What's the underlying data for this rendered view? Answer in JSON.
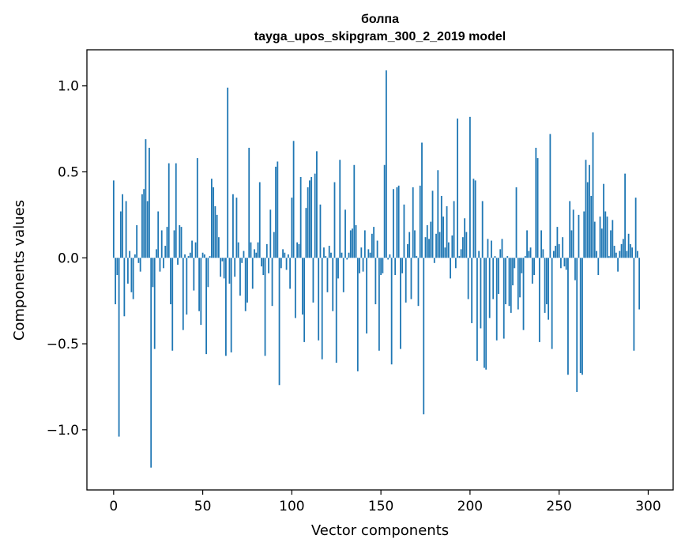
{
  "chart_data": {
    "type": "bar",
    "title": "болпа",
    "subtitle": "tayga_upos_skipgram_300_2_2019 model",
    "xlabel": "Vector components",
    "ylabel": "Components values",
    "xlim": [
      -15,
      314
    ],
    "ylim": [
      -1.35,
      1.21
    ],
    "xticks": [
      0,
      50,
      100,
      150,
      200,
      250,
      300
    ],
    "xtick_labels": [
      "0",
      "50",
      "100",
      "150",
      "200",
      "250",
      "300"
    ],
    "yticks": [
      -1.0,
      -0.5,
      0.0,
      0.5,
      1.0
    ],
    "ytick_labels": [
      "−1.0",
      "−0.5",
      "0.0",
      "0.5",
      "1.0"
    ],
    "bar_color": "#1f77b4",
    "grid": false,
    "series": [
      {
        "name": "болпа",
        "values": [
          0.45,
          -0.27,
          -0.1,
          -1.04,
          0.27,
          0.37,
          -0.34,
          0.33,
          -0.15,
          0.04,
          -0.2,
          -0.24,
          0.02,
          0.19,
          -0.03,
          -0.08,
          0.37,
          0.4,
          0.69,
          0.33,
          0.64,
          -1.22,
          -0.17,
          -0.53,
          0.05,
          0.27,
          -0.08,
          0.16,
          -0.06,
          0.07,
          0.18,
          0.55,
          -0.27,
          -0.54,
          0.16,
          0.55,
          -0.04,
          0.19,
          0.18,
          -0.42,
          0.02,
          -0.33,
          0.01,
          0.03,
          0.1,
          -0.19,
          0.09,
          0.58,
          -0.31,
          -0.39,
          0.03,
          0.02,
          -0.56,
          -0.17,
          0.01,
          0.46,
          0.41,
          0.3,
          0.25,
          0.12,
          -0.11,
          -0.02,
          -0.12,
          -0.57,
          0.99,
          -0.15,
          -0.55,
          0.37,
          -0.11,
          0.35,
          0.09,
          -0.22,
          -0.03,
          0.04,
          -0.31,
          -0.26,
          0.64,
          0.09,
          -0.18,
          0.05,
          0.03,
          0.09,
          0.44,
          -0.05,
          -0.1,
          -0.57,
          0.08,
          -0.09,
          0.28,
          -0.28,
          0.15,
          0.53,
          0.56,
          -0.74,
          -0.06,
          0.05,
          0.03,
          -0.07,
          0.02,
          -0.18,
          0.35,
          0.68,
          -0.35,
          0.09,
          0.08,
          0.47,
          -0.33,
          -0.49,
          0.29,
          0.41,
          0.45,
          0.47,
          -0.26,
          0.49,
          0.62,
          -0.48,
          0.31,
          -0.59,
          0.06,
          0.01,
          -0.2,
          0.07,
          0.03,
          -0.31,
          0.44,
          -0.61,
          -0.12,
          0.57,
          0.03,
          -0.2,
          0.28,
          -0.01,
          0.03,
          0.16,
          0.17,
          0.54,
          0.19,
          -0.66,
          -0.09,
          0.06,
          -0.08,
          0.16,
          -0.44,
          0.05,
          0.03,
          0.14,
          0.18,
          -0.27,
          0.1,
          -0.54,
          -0.1,
          -0.09,
          0.54,
          1.09,
          -0.01,
          0.02,
          -0.62,
          0.4,
          -0.1,
          0.41,
          0.42,
          -0.53,
          -0.09,
          0.31,
          -0.26,
          0.08,
          0.15,
          -0.24,
          0.41,
          0.16,
          0.01,
          -0.28,
          0.42,
          0.67,
          -0.91,
          0.12,
          0.19,
          0.11,
          0.21,
          0.39,
          -0.03,
          0.14,
          0.51,
          0.15,
          0.36,
          0.24,
          0.06,
          0.3,
          0.09,
          -0.12,
          0.13,
          0.33,
          -0.06,
          0.81,
          0.01,
          0.05,
          0.12,
          0.23,
          0.15,
          -0.24,
          0.82,
          -0.38,
          0.46,
          0.45,
          -0.6,
          0.04,
          -0.41,
          0.33,
          -0.64,
          -0.65,
          0.11,
          -0.35,
          0.1,
          -0.24,
          0.01,
          -0.48,
          -0.21,
          0.05,
          0.11,
          -0.47,
          -0.27,
          0.01,
          -0.28,
          -0.32,
          -0.16,
          -0.06,
          0.41,
          -0.3,
          -0.23,
          -0.09,
          -0.42,
          0.01,
          0.16,
          0.04,
          0.06,
          -0.15,
          -0.1,
          0.64,
          0.58,
          -0.49,
          0.16,
          0.05,
          -0.32,
          -0.27,
          -0.36,
          0.72,
          -0.53,
          0.04,
          0.07,
          0.18,
          0.08,
          -0.06,
          0.12,
          -0.05,
          -0.07,
          -0.68,
          0.33,
          0.16,
          0.28,
          -0.13,
          -0.78,
          0.25,
          -0.67,
          -0.68,
          0.27,
          0.57,
          0.44,
          0.54,
          0.36,
          0.73,
          0.21,
          0.04,
          -0.1,
          0.24,
          0.17,
          0.43,
          0.27,
          0.24,
          0.01,
          0.16,
          0.22,
          0.07,
          0.03,
          -0.08,
          0.04,
          0.08,
          0.11,
          0.49,
          0.04,
          0.14,
          0.08,
          0.06,
          -0.54,
          0.35,
          0.04,
          -0.3
        ]
      }
    ]
  }
}
